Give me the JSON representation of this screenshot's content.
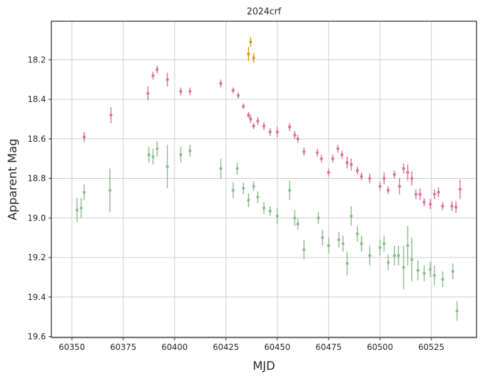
{
  "chart_data": {
    "type": "scatter",
    "title": "2024crf",
    "xlabel": "MJD",
    "ylabel": "Apparent Mag",
    "xlim": [
      60340,
      60547
    ],
    "ylim": [
      19.605,
      18.005
    ],
    "y_inverted": true,
    "grid": true,
    "legend": "none",
    "xticks": [
      60350,
      60375,
      60400,
      60425,
      60450,
      60475,
      60500,
      60525
    ],
    "yticks": [
      18.2,
      18.4,
      18.6,
      18.8,
      19.0,
      19.2,
      19.4,
      19.6
    ],
    "ytick_labels": [
      "18.2",
      "18.4",
      "18.6",
      "18.8",
      "19.0",
      "19.2",
      "19.4",
      "19.6"
    ],
    "series": [
      {
        "color": "#d9719b",
        "points": [
          [
            60356,
            18.59,
            0.025
          ],
          [
            60369,
            18.48,
            0.04
          ],
          [
            60387,
            18.37,
            0.035
          ],
          [
            60389.5,
            18.28,
            0.02
          ],
          [
            60391.5,
            18.25,
            0.02
          ],
          [
            60396.5,
            18.3,
            0.035
          ],
          [
            60403,
            18.36,
            0.02
          ],
          [
            60407.5,
            18.36,
            0.02
          ],
          [
            60422.5,
            18.32,
            0.02
          ],
          [
            60428.5,
            18.355,
            0.015
          ],
          [
            60431,
            18.38,
            0.015
          ],
          [
            60433.5,
            18.435,
            0.015
          ],
          [
            60436,
            18.48,
            0.015
          ],
          [
            60437,
            18.5,
            0.02
          ],
          [
            60438.5,
            18.535,
            0.015
          ],
          [
            60440.5,
            18.51,
            0.02
          ],
          [
            60443.5,
            18.535,
            0.02
          ],
          [
            60446.5,
            18.565,
            0.02
          ],
          [
            60450,
            18.565,
            0.025
          ],
          [
            60456,
            18.54,
            0.02
          ],
          [
            60458.5,
            18.58,
            0.02
          ],
          [
            60460,
            18.6,
            0.02
          ],
          [
            60463,
            18.665,
            0.02
          ],
          [
            60469.5,
            18.67,
            0.02
          ],
          [
            60471.5,
            18.7,
            0.02
          ],
          [
            60475,
            18.77,
            0.02
          ],
          [
            60477,
            18.7,
            0.02
          ],
          [
            60479.5,
            18.65,
            0.02
          ],
          [
            60481.5,
            18.68,
            0.02
          ],
          [
            60484,
            18.72,
            0.03
          ],
          [
            60486,
            18.73,
            0.03
          ],
          [
            60489,
            18.76,
            0.02
          ],
          [
            60491,
            18.79,
            0.02
          ],
          [
            60495,
            18.8,
            0.025
          ],
          [
            60500,
            18.84,
            0.02
          ],
          [
            60502,
            18.8,
            0.03
          ],
          [
            60504,
            18.86,
            0.02
          ],
          [
            60507,
            18.78,
            0.02
          ],
          [
            60509.5,
            18.84,
            0.04
          ],
          [
            60511.5,
            18.75,
            0.025
          ],
          [
            60513.5,
            18.77,
            0.04
          ],
          [
            60515.5,
            18.8,
            0.035
          ],
          [
            60517.5,
            18.88,
            0.025
          ],
          [
            60519.5,
            18.88,
            0.03
          ],
          [
            60521.5,
            18.92,
            0.02
          ],
          [
            60524.5,
            18.93,
            0.025
          ],
          [
            60526.5,
            18.88,
            0.025
          ],
          [
            60528.5,
            18.87,
            0.025
          ],
          [
            60530.5,
            18.94,
            0.02
          ],
          [
            60535,
            18.94,
            0.025
          ],
          [
            60537,
            18.945,
            0.03
          ],
          [
            60539,
            18.855,
            0.05
          ]
        ]
      },
      {
        "color": "#8fbc8f",
        "points": [
          [
            60352.5,
            18.96,
            0.06
          ],
          [
            60354.5,
            18.95,
            0.05
          ],
          [
            60356,
            18.87,
            0.04
          ],
          [
            60368.5,
            18.86,
            0.11
          ],
          [
            60387.5,
            18.68,
            0.04
          ],
          [
            60389.5,
            18.69,
            0.04
          ],
          [
            60391.5,
            18.65,
            0.04
          ],
          [
            60396.5,
            18.74,
            0.11
          ],
          [
            60403,
            18.68,
            0.04
          ],
          [
            60407.5,
            18.66,
            0.03
          ],
          [
            60422.5,
            18.75,
            0.05
          ],
          [
            60428.5,
            18.86,
            0.04
          ],
          [
            60430.5,
            18.75,
            0.03
          ],
          [
            60433.5,
            18.85,
            0.03
          ],
          [
            60436,
            18.91,
            0.035
          ],
          [
            60438.5,
            18.84,
            0.025
          ],
          [
            60440.5,
            18.895,
            0.03
          ],
          [
            60443.5,
            18.95,
            0.03
          ],
          [
            60446.5,
            18.965,
            0.025
          ],
          [
            60450,
            18.99,
            0.04
          ],
          [
            60456,
            18.86,
            0.05
          ],
          [
            60458.5,
            19.0,
            0.04
          ],
          [
            60460,
            19.03,
            0.03
          ],
          [
            60463,
            19.16,
            0.05
          ],
          [
            60470,
            19.0,
            0.03
          ],
          [
            60472,
            19.1,
            0.04
          ],
          [
            60475,
            19.14,
            0.04
          ],
          [
            60480,
            19.11,
            0.04
          ],
          [
            60482,
            19.13,
            0.04
          ],
          [
            60484,
            19.23,
            0.06
          ],
          [
            60486,
            18.99,
            0.05
          ],
          [
            60489,
            19.08,
            0.04
          ],
          [
            60491,
            19.13,
            0.04
          ],
          [
            60495,
            19.19,
            0.05
          ],
          [
            60500,
            19.15,
            0.04
          ],
          [
            60502,
            19.13,
            0.04
          ],
          [
            60504,
            19.225,
            0.04
          ],
          [
            60507,
            19.19,
            0.05
          ],
          [
            60509,
            19.19,
            0.05
          ],
          [
            60511.5,
            19.25,
            0.11
          ],
          [
            60513.5,
            19.14,
            0.1
          ],
          [
            60515.5,
            19.21,
            0.11
          ],
          [
            60518.5,
            19.265,
            0.05
          ],
          [
            60521.5,
            19.28,
            0.04
          ],
          [
            60524.5,
            19.26,
            0.04
          ],
          [
            60526.5,
            19.29,
            0.05
          ],
          [
            60530.5,
            19.31,
            0.04
          ],
          [
            60535.5,
            19.27,
            0.04
          ],
          [
            60537.5,
            19.47,
            0.05
          ]
        ]
      },
      {
        "color": "#d4a017",
        "points": [
          [
            60436,
            18.17,
            0.035
          ],
          [
            60437,
            18.11,
            0.025
          ],
          [
            60438.5,
            18.19,
            0.025
          ]
        ]
      }
    ]
  }
}
